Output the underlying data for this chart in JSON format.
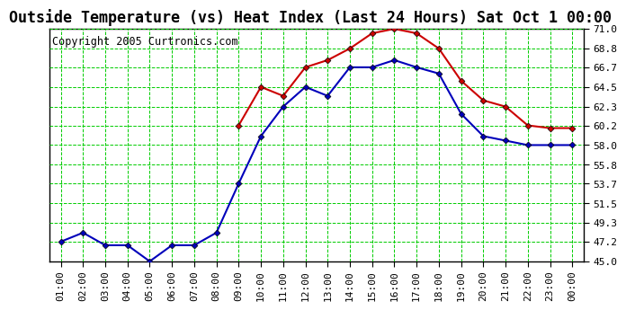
{
  "title": "Outside Temperature (vs) Heat Index (Last 24 Hours) Sat Oct 1 00:00",
  "copyright": "Copyright 2005 Curtronics.com",
  "x_labels": [
    "01:00",
    "02:00",
    "03:00",
    "04:00",
    "05:00",
    "06:00",
    "07:00",
    "08:00",
    "09:00",
    "10:00",
    "11:00",
    "12:00",
    "13:00",
    "14:00",
    "15:00",
    "16:00",
    "17:00",
    "18:00",
    "19:00",
    "20:00",
    "21:00",
    "22:00",
    "23:00",
    "00:00"
  ],
  "blue_data": [
    47.2,
    48.2,
    46.8,
    46.8,
    45.0,
    46.8,
    46.8,
    48.2,
    53.7,
    59.0,
    62.3,
    64.5,
    63.5,
    66.7,
    66.7,
    67.5,
    66.7,
    66.0,
    61.5,
    59.0,
    58.5,
    58.0,
    58.0,
    58.0
  ],
  "red_data": [
    null,
    null,
    null,
    null,
    null,
    null,
    null,
    null,
    60.2,
    64.5,
    63.5,
    66.7,
    67.5,
    68.8,
    70.5,
    71.0,
    70.5,
    68.8,
    65.2,
    63.0,
    62.3,
    60.2,
    59.9,
    59.9
  ],
  "blue_color": "#0000bb",
  "red_color": "#cc0000",
  "bg_color": "#ffffff",
  "plot_bg": "#ffffff",
  "grid_major_color": "#00cc00",
  "grid_minor_color": "#00cc00",
  "ylim": [
    45.0,
    71.0
  ],
  "yticks": [
    45.0,
    47.2,
    49.3,
    51.5,
    53.7,
    55.8,
    58.0,
    60.2,
    62.3,
    64.5,
    66.7,
    68.8,
    71.0
  ],
  "title_fontsize": 12,
  "copyright_fontsize": 8.5,
  "tick_fontsize": 8
}
